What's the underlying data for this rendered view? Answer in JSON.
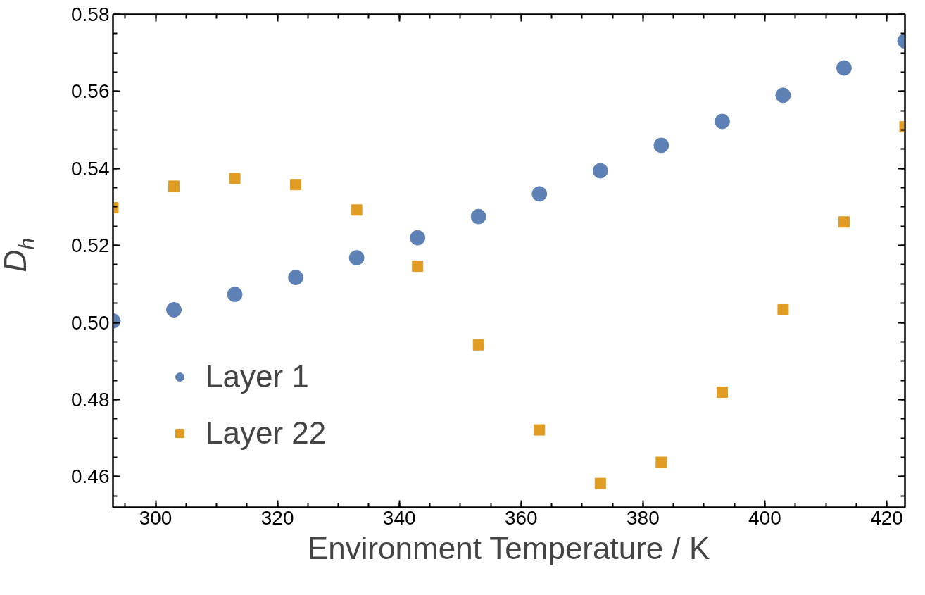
{
  "chart_data": {
    "type": "scatter",
    "xlabel": "Environment Temperature / K",
    "ylabel": "D$_{h}$",
    "x": [
      293,
      303,
      313,
      323,
      333,
      343,
      353,
      363,
      373,
      383,
      393,
      403,
      413,
      423
    ],
    "series": [
      {
        "name": "Layer 1",
        "color": "#5e81b5",
        "marker": "circle",
        "values": [
          0.5004,
          0.5033,
          0.5073,
          0.5117,
          0.5168,
          0.522,
          0.5275,
          0.5334,
          0.5394,
          0.546,
          0.5522,
          0.559,
          0.5661,
          0.5731
        ]
      },
      {
        "name": "Layer 22",
        "color": "#e19c24",
        "marker": "square",
        "values": [
          0.5298,
          0.5354,
          0.5374,
          0.5358,
          0.5292,
          0.5146,
          0.4942,
          0.4721,
          0.4582,
          0.4637,
          0.4819,
          0.5033,
          0.5261,
          0.5508
        ]
      }
    ],
    "xlim": [
      293,
      423
    ],
    "ylim": [
      0.452,
      0.58
    ],
    "xticks": [
      300,
      320,
      340,
      360,
      380,
      400,
      420
    ],
    "yticks": [
      {
        "value": 0.46,
        "label": "0.46"
      },
      {
        "value": 0.48,
        "label": "0.48"
      },
      {
        "value": 0.5,
        "label": "0.50"
      },
      {
        "value": 0.52,
        "label": "0.52"
      },
      {
        "value": 0.54,
        "label": "0.54"
      },
      {
        "value": 0.56,
        "label": "0.56"
      },
      {
        "value": 0.58,
        "label": "0.58"
      }
    ],
    "legend": "bottom left",
    "grid": false
  }
}
